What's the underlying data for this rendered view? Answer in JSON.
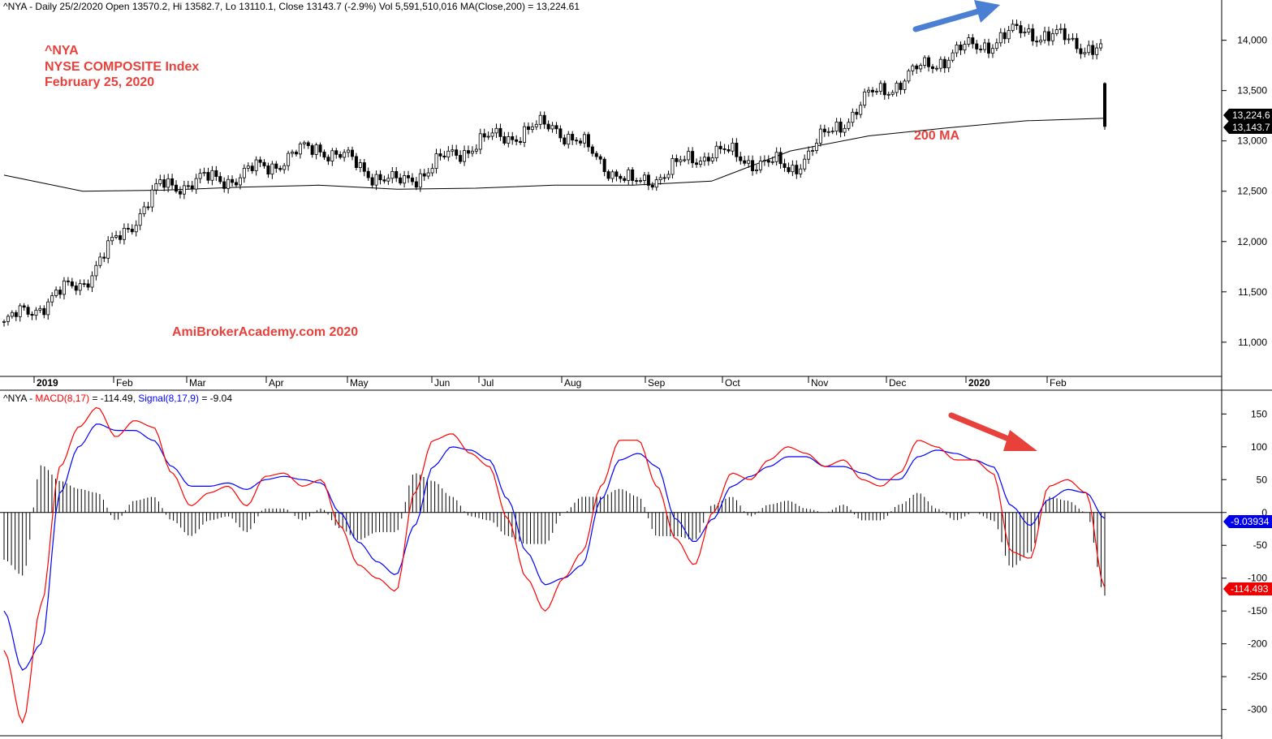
{
  "upper_header": "^NYA - Daily 25/2/2020 Open 13570.2, Hi 13582.7, Lo 13110.1, Close 13143.7 (-2.9%) Vol 5,591,510,016 MA(Close,200) = 13,224.61",
  "lower_header": {
    "prefix": "^NYA - ",
    "macd_label": "MACD(8,17)",
    "macd_value": " = -114.49, ",
    "signal_label": "Signal(8,17,9)",
    "signal_value": " = -9.04"
  },
  "annotations": {
    "ticker": "^NYA",
    "index_name": "NYSE COMPOSITE Index",
    "date": "February 25, 2020",
    "watermark": "AmiBrokerAcademy.com   2020",
    "ma_label": "200 MA"
  },
  "price_tags": [
    "13,224.6",
    "13,143.7"
  ],
  "macd_tags": [
    "-9.03934",
    "-114.493"
  ],
  "colors": {
    "accent_red": "#e8413c",
    "macd_line": "#ff0000",
    "signal_line": "#0000ff",
    "blue_arrow": "#4a7fd4",
    "red_arrow": "#e8413c"
  },
  "chart_data": [
    {
      "type": "candlestick",
      "series": [
        {
          "name": "^NYA",
          "x_months": [
            "2019-01",
            "2019-02",
            "2019-03",
            "2019-04",
            "2019-05",
            "2019-06",
            "2019-07",
            "2019-08",
            "2019-09",
            "2019-10",
            "2019-11",
            "2019-12",
            "2020-01",
            "2020-02"
          ],
          "monthly_path": [
            11180,
            11600,
            12550,
            12650,
            12950,
            12560,
            12980,
            13160,
            12550,
            12900,
            12720,
            13430,
            13850,
            14100,
            13900
          ],
          "last_candle": {
            "open": 13570.2,
            "high": 13582.7,
            "low": 13110.1,
            "close": 13143.7
          }
        },
        {
          "name": "200 MA",
          "y_path": [
            12660,
            12500,
            12510,
            12540,
            12560,
            12520,
            12530,
            12560,
            12560,
            12600,
            12900,
            13050,
            13130,
            13200,
            13224.61
          ]
        }
      ],
      "x_tick_labels": [
        "2019",
        "Feb",
        "Mar",
        "Apr",
        "May",
        "Jun",
        "Jul",
        "Aug",
        "Sep",
        "Oct",
        "Nov",
        "Dec",
        "2020",
        "Feb"
      ],
      "y_tick_labels": [
        "14,000",
        "13,500",
        "13,000",
        "12,500",
        "12,000",
        "11,500",
        "11,000"
      ],
      "ylim": [
        10660,
        14400
      ]
    },
    {
      "type": "line",
      "series": [
        {
          "name": "MACD(8,17)",
          "y_path": [
            -210,
            -320,
            -140,
            70,
            130,
            160,
            115,
            140,
            130,
            60,
            10,
            30,
            40,
            10,
            55,
            60,
            40,
            50,
            -20,
            -80,
            -100,
            -120,
            30,
            110,
            120,
            90,
            70,
            -10,
            -100,
            -150,
            -100,
            -60,
            40,
            110,
            110,
            40,
            -40,
            -80,
            0,
            60,
            50,
            80,
            100,
            90,
            70,
            80,
            50,
            40,
            60,
            110,
            100,
            80,
            80,
            60,
            -60,
            -70,
            40,
            50,
            30,
            -114.49
          ],
          "last_value": -114.49
        },
        {
          "name": "Signal(8,17,9)",
          "y_path": [
            -150,
            -240,
            -200,
            30,
            100,
            135,
            125,
            125,
            110,
            70,
            40,
            40,
            45,
            35,
            50,
            55,
            50,
            45,
            0,
            -45,
            -75,
            -95,
            -20,
            70,
            100,
            95,
            80,
            20,
            -60,
            -110,
            -100,
            -80,
            20,
            80,
            90,
            70,
            -10,
            -45,
            -10,
            40,
            55,
            70,
            85,
            85,
            70,
            70,
            60,
            50,
            50,
            85,
            95,
            90,
            80,
            70,
            10,
            -20,
            20,
            35,
            30,
            -9.04
          ],
          "last_value": -9.04
        }
      ],
      "histogram_note": "MACD minus Signal, drawn as vertical bars",
      "y_tick_labels": [
        "150",
        "100",
        "50",
        "0",
        "-50",
        "-100",
        "-150",
        "-200",
        "-250",
        "-300"
      ],
      "ylim": [
        -340,
        185
      ]
    }
  ]
}
